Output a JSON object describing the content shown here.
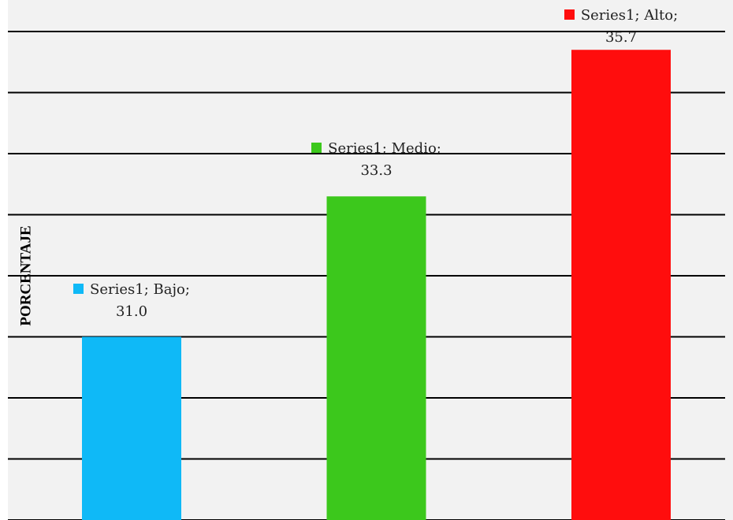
{
  "chart_data": {
    "type": "bar",
    "y_axis_label": "PORCENTAJE",
    "series_name": "Series1",
    "categories": [
      "Bajo",
      "Medio",
      "Alto"
    ],
    "values": [
      31.0,
      33.3,
      35.7
    ],
    "value_labels": [
      "Series1; Bajo; 31.0",
      "Series1; Medio; 33.3",
      "Series1; Alto; 35.7"
    ],
    "colors": [
      "#0fb9f7",
      "#3cc81c",
      "#ff0d0d"
    ],
    "ylim": [
      28,
      36
    ],
    "yticks": [
      28,
      29,
      30,
      31,
      32,
      33,
      34,
      35,
      36
    ],
    "grid": true
  }
}
